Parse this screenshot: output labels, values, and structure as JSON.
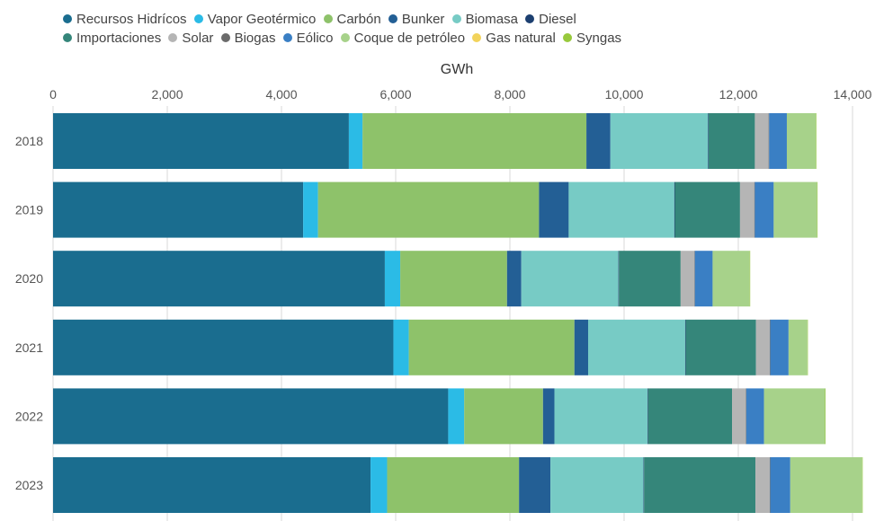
{
  "chart_data": {
    "type": "bar",
    "orientation": "horizontal",
    "stacked": true,
    "xlabel": "GWh",
    "xlim": [
      0,
      14000
    ],
    "xticks": [
      0,
      2000,
      4000,
      6000,
      8000,
      10000,
      12000,
      14000
    ],
    "xtick_labels": [
      "0",
      "2,000",
      "4,000",
      "6,000",
      "8,000",
      "10,000",
      "12,000",
      "14,000"
    ],
    "grid": "vertical",
    "legend_position": "top",
    "categories": [
      "2018",
      "2019",
      "2020",
      "2021",
      "2022",
      "2023"
    ],
    "series": [
      {
        "name": "Recursos Hidrícos",
        "color": "#1a6d8f",
        "values": [
          5180,
          4380,
          5810,
          5960,
          6920,
          5560
        ]
      },
      {
        "name": "Vapor Geotérmico",
        "color": "#2bbbe6",
        "values": [
          240,
          260,
          270,
          270,
          280,
          290
        ]
      },
      {
        "name": "Carbón",
        "color": "#8ec26a",
        "values": [
          3920,
          3870,
          1870,
          2900,
          1380,
          2310
        ]
      },
      {
        "name": "Bunker",
        "color": "#235f95",
        "values": [
          420,
          520,
          250,
          240,
          200,
          550
        ]
      },
      {
        "name": "Biomasa",
        "color": "#77cbc5",
        "values": [
          1710,
          1850,
          1700,
          1700,
          1630,
          1630
        ]
      },
      {
        "name": "Diesel",
        "color": "#1c3f70",
        "values": [
          10,
          10,
          10,
          10,
          10,
          10
        ]
      },
      {
        "name": "Importaciones",
        "color": "#35867a",
        "values": [
          810,
          1140,
          1080,
          1230,
          1470,
          1950
        ]
      },
      {
        "name": "Solar",
        "color": "#b5b5b5",
        "values": [
          240,
          250,
          240,
          240,
          240,
          250
        ]
      },
      {
        "name": "Biogas",
        "color": "#6b6b6b",
        "values": [
          10,
          10,
          10,
          10,
          10,
          10
        ]
      },
      {
        "name": "Eólico",
        "color": "#3a7fc4",
        "values": [
          310,
          330,
          310,
          320,
          310,
          350
        ]
      },
      {
        "name": "Coque de petróleo",
        "color": "#a7d28a",
        "values": [
          510,
          760,
          650,
          330,
          1070,
          1260
        ]
      },
      {
        "name": "Gas natural",
        "color": "#f2d35b",
        "values": [
          0,
          0,
          0,
          0,
          0,
          0
        ]
      },
      {
        "name": "Syngas",
        "color": "#98c93c",
        "values": [
          5,
          5,
          5,
          5,
          5,
          5
        ]
      }
    ]
  }
}
